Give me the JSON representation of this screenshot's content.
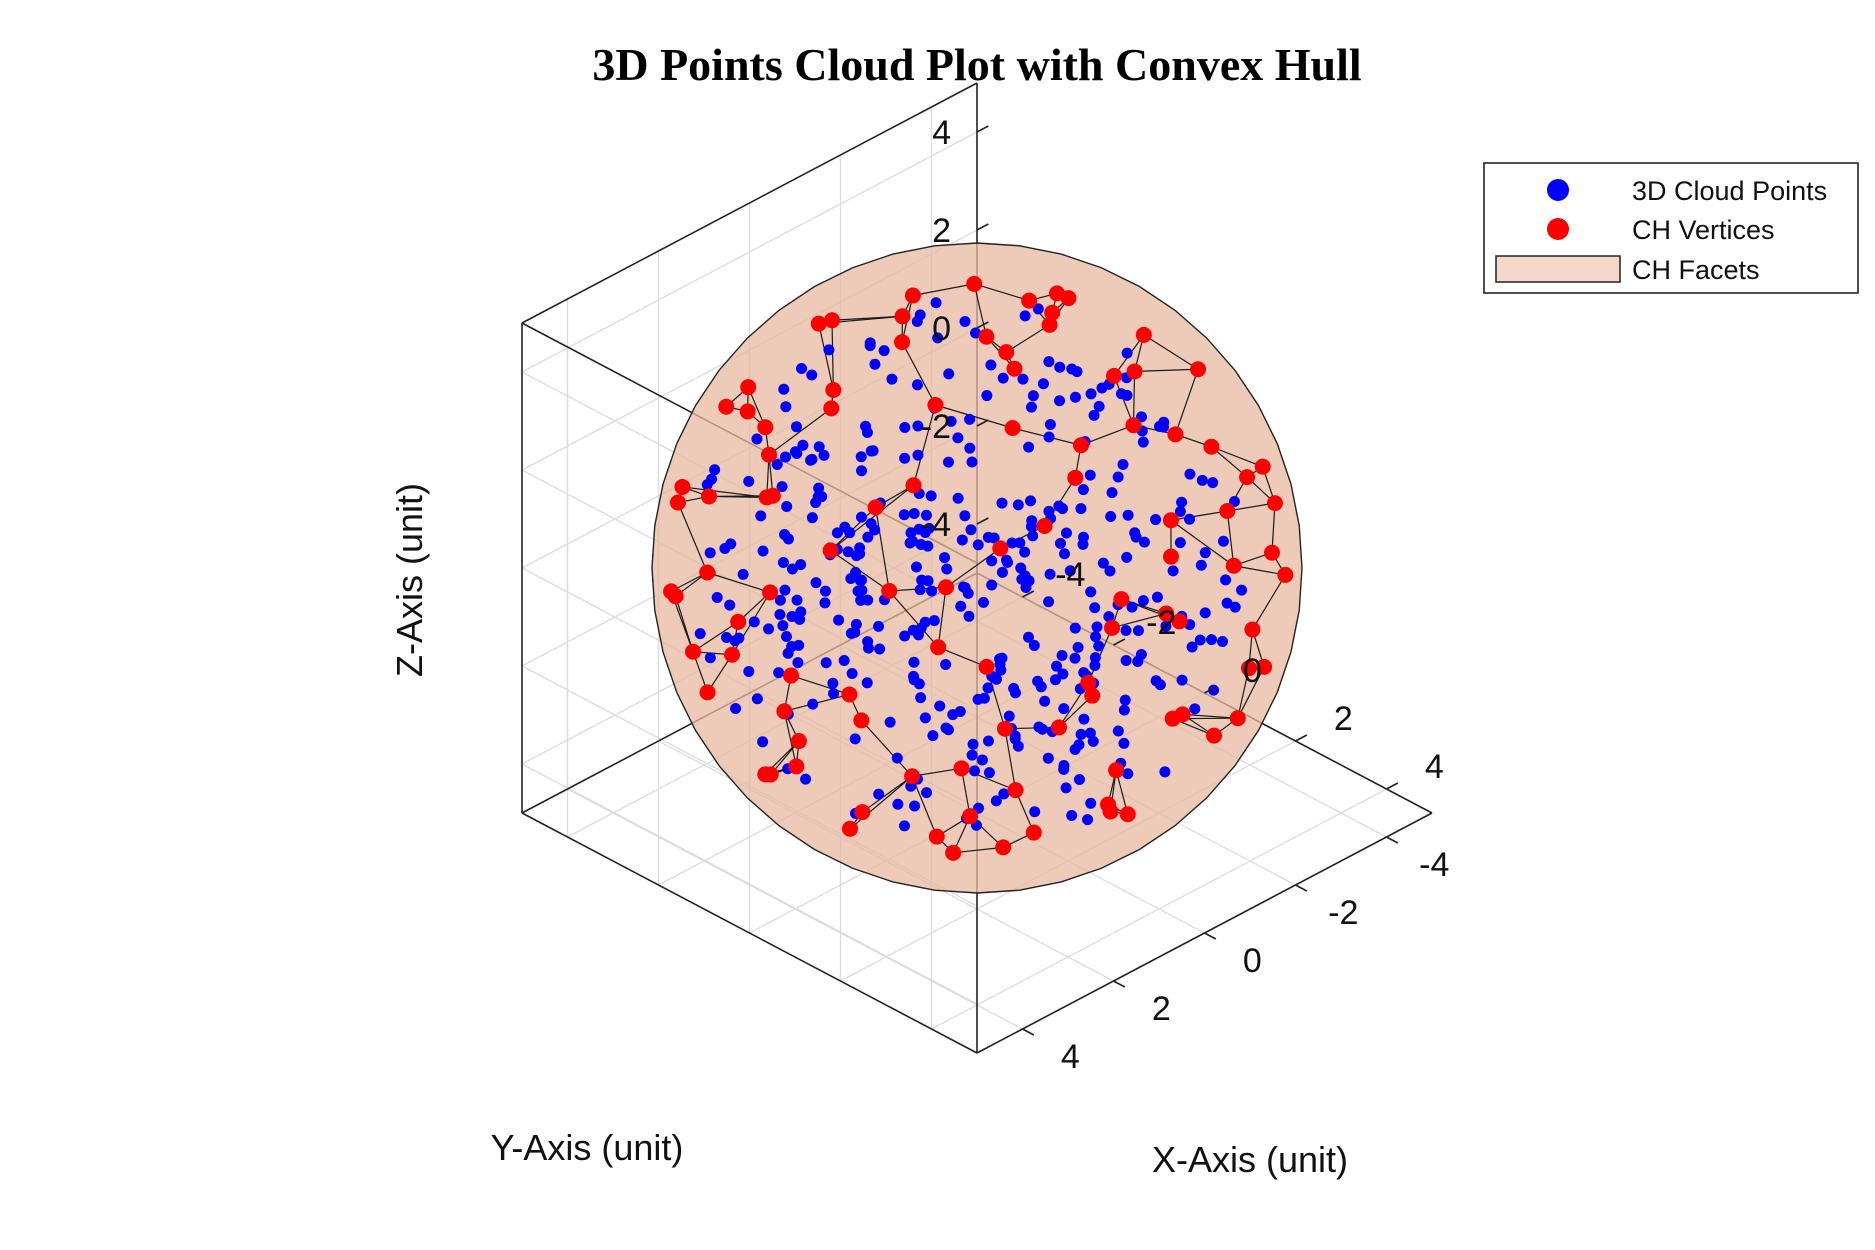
{
  "chart_data": {
    "type": "scatter",
    "title": "3D Points Cloud Plot with Convex Hull",
    "xlabel": "X-Axis (unit)",
    "ylabel": "Y-Axis (unit)",
    "zlabel": "Z-Axis (unit)",
    "xlim": [
      -5,
      5
    ],
    "ylim": [
      -5,
      5
    ],
    "zlim": [
      -5,
      5
    ],
    "xticks": [
      -4,
      -2,
      0,
      2,
      4
    ],
    "yticks": [
      -4,
      -2,
      0,
      2,
      4
    ],
    "zticks": [
      -4,
      -2,
      0,
      2,
      4
    ],
    "xtick_labels": [
      "-4",
      "-2",
      "0",
      "2",
      "4"
    ],
    "ytick_labels": [
      "-4",
      "-2",
      "0",
      "2",
      "4"
    ],
    "ztick_labels": [
      "-4",
      "-2",
      "0",
      "2",
      "4"
    ],
    "grid": true,
    "view": "3D, azimuth -45°, elevation 35°",
    "sphere_radius": 4.8,
    "legend": {
      "position": "top-right",
      "entries": [
        {
          "label": "3D Cloud Points",
          "marker": "dot",
          "color": "#0000ff"
        },
        {
          "label": "CH Vertices",
          "marker": "dot",
          "color": "#ff0000"
        },
        {
          "label": "CH Facets",
          "marker": "patch",
          "color": "#f5d7cc"
        }
      ]
    },
    "series": [
      {
        "name": "3D Cloud Points",
        "color": "#0000ff",
        "count": 400
      },
      {
        "name": "CH Vertices",
        "color": "#ff0000",
        "count": 100
      },
      {
        "name": "CH Facets",
        "color": "#e8b8a0"
      }
    ]
  }
}
